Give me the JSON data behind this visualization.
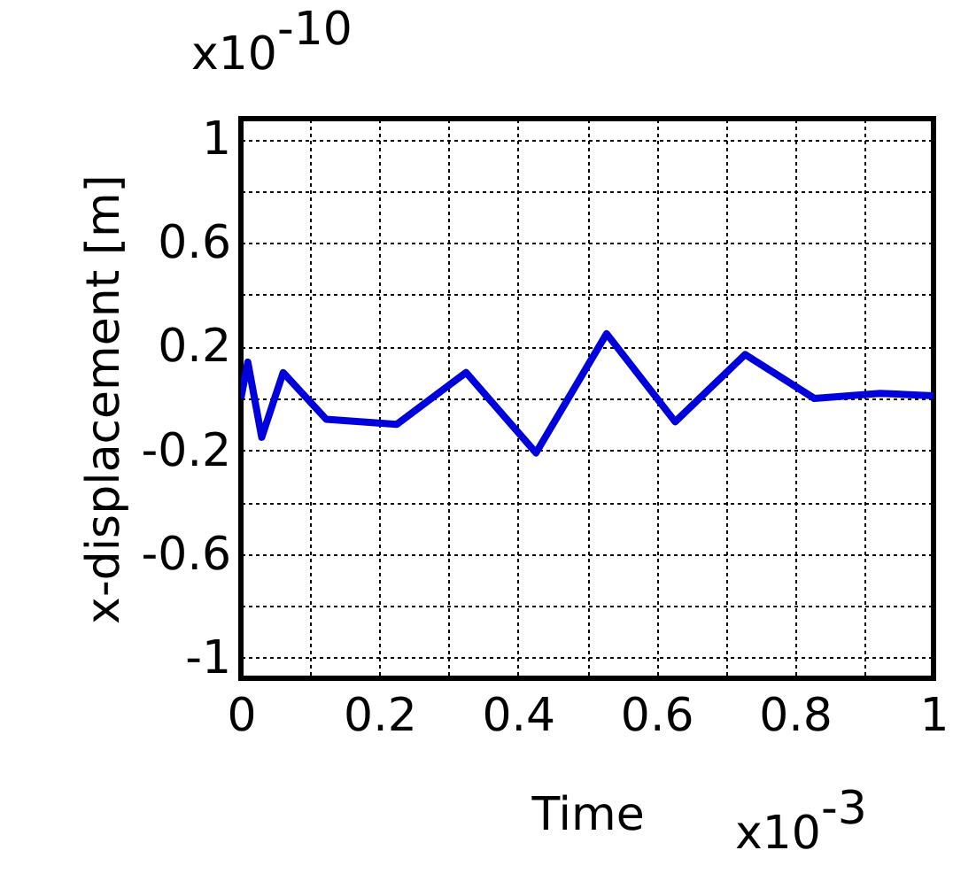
{
  "chart_data": {
    "type": "line",
    "xlabel": "Time",
    "ylabel": "x-displacement [m]",
    "annotations": [
      "x10$^{-10}$",
      "x10$^{-3}$"
    ],
    "x": [
      0,
      0.01,
      0.03,
      0.061,
      0.123,
      0.225,
      0.325,
      0.426,
      0.528,
      0.627,
      0.728,
      0.828,
      0.923,
      1.0
    ],
    "series": [
      {
        "color": "#0000dd",
        "values": [
          0,
          0.14,
          -0.15,
          0.1,
          -0.08,
          -0.1,
          0.1,
          -0.21,
          0.25,
          -0.09,
          0.17,
          0,
          0.02,
          0.01
        ]
      }
    ],
    "xlim": [
      0,
      1
    ],
    "ylim": [
      -1.08,
      1.08
    ],
    "xticks": [
      0,
      {
        "value": 0.1,
        "label": null
      },
      0.2,
      {
        "value": 0.3,
        "label": null
      },
      0.4,
      {
        "value": 0.5,
        "label": null
      },
      0.6,
      {
        "value": 0.7,
        "label": null
      },
      0.8,
      {
        "value": 0.9,
        "label": null
      },
      1
    ],
    "yticks": [
      -1,
      {
        "value": -0.8,
        "label": null
      },
      -0.6,
      {
        "value": -0.4,
        "label": null
      },
      -0.2,
      {
        "value": 0,
        "label": null
      },
      0.2,
      {
        "value": 0.4,
        "label": null
      },
      0.6,
      {
        "value": 0.8,
        "label": null
      },
      1
    ],
    "grid": true,
    "marker": "none",
    "line_style": "solid"
  }
}
